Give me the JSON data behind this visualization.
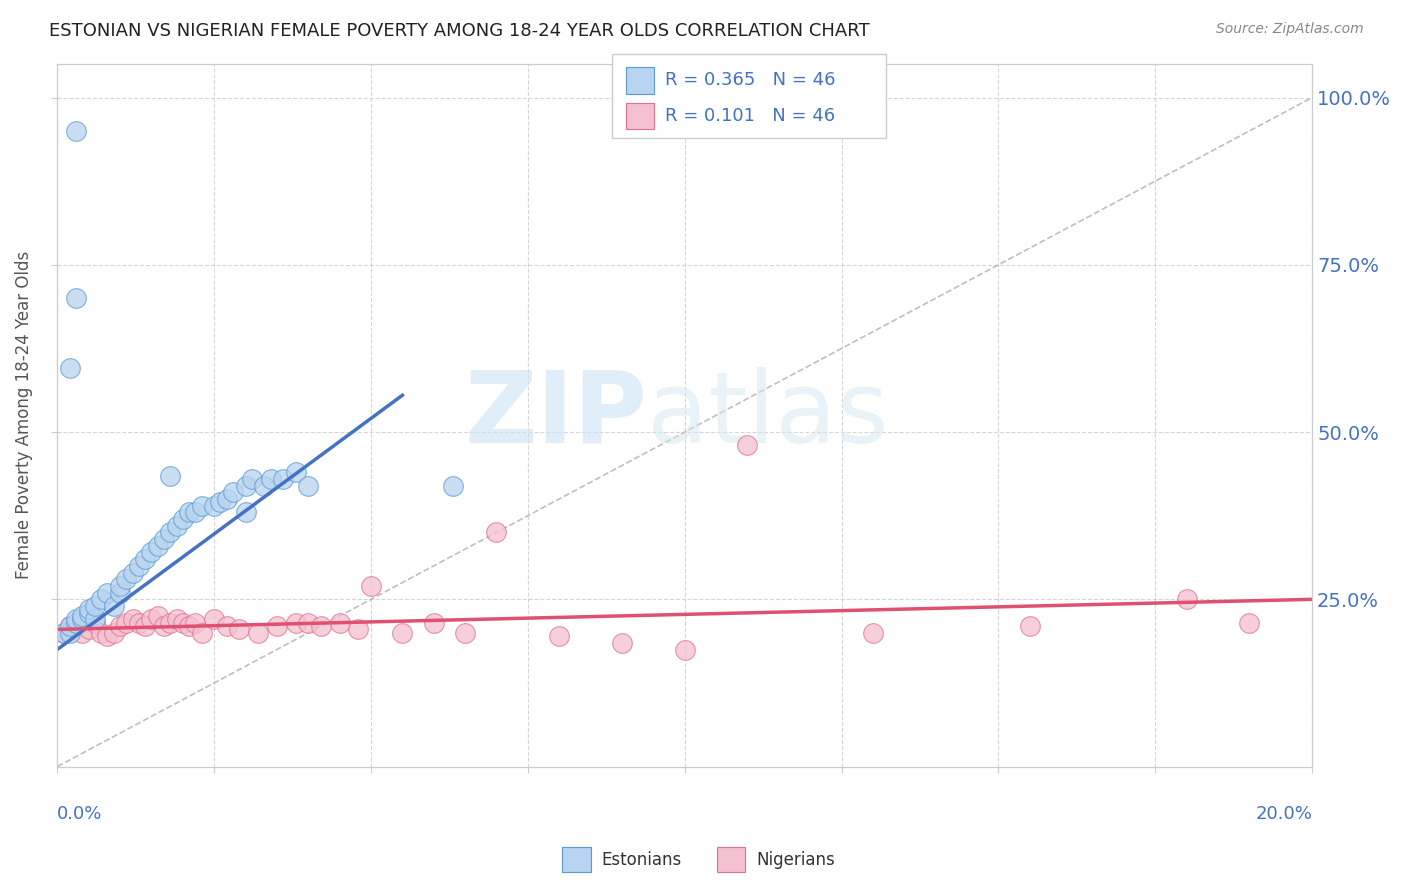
{
  "title": "ESTONIAN VS NIGERIAN FEMALE POVERTY AMONG 18-24 YEAR OLDS CORRELATION CHART",
  "source": "Source: ZipAtlas.com",
  "ylabel": "Female Poverty Among 18-24 Year Olds",
  "ytick_labels": [
    "100.0%",
    "75.0%",
    "50.0%",
    "25.0%"
  ],
  "ytick_values": [
    1.0,
    0.75,
    0.5,
    0.25
  ],
  "xlim": [
    0.0,
    0.2
  ],
  "ylim": [
    0.0,
    1.05
  ],
  "R_estonian": 0.365,
  "N_estonian": 46,
  "R_nigerian": 0.101,
  "N_nigerian": 46,
  "color_estonian_fill": "#b8d4f0",
  "color_estonian_edge": "#5b9bd5",
  "color_nigerian_fill": "#f5c0d0",
  "color_nigerian_edge": "#e07090",
  "color_line_estonian": "#4472c4",
  "color_line_nigerian": "#e05070",
  "color_diag": "#b8b8b8",
  "color_blue_text": "#4472c4",
  "color_source": "#888888",
  "color_title": "#222222",
  "estonian_x": [
    0.001,
    0.002,
    0.002,
    0.003,
    0.003,
    0.004,
    0.004,
    0.005,
    0.005,
    0.006,
    0.006,
    0.007,
    0.008,
    0.009,
    0.01,
    0.01,
    0.011,
    0.012,
    0.013,
    0.014,
    0.015,
    0.016,
    0.017,
    0.018,
    0.019,
    0.02,
    0.021,
    0.022,
    0.023,
    0.025,
    0.026,
    0.027,
    0.028,
    0.03,
    0.031,
    0.033,
    0.034,
    0.036,
    0.038,
    0.04,
    0.002,
    0.003,
    0.018,
    0.03,
    0.003,
    0.063
  ],
  "estonian_y": [
    0.2,
    0.2,
    0.21,
    0.215,
    0.22,
    0.22,
    0.225,
    0.23,
    0.235,
    0.22,
    0.24,
    0.25,
    0.26,
    0.24,
    0.26,
    0.27,
    0.28,
    0.29,
    0.3,
    0.31,
    0.32,
    0.33,
    0.34,
    0.35,
    0.36,
    0.37,
    0.38,
    0.38,
    0.39,
    0.39,
    0.395,
    0.4,
    0.41,
    0.42,
    0.43,
    0.42,
    0.43,
    0.43,
    0.44,
    0.42,
    0.595,
    0.7,
    0.435,
    0.38,
    0.95,
    0.42
  ],
  "nigerian_x": [
    0.001,
    0.002,
    0.003,
    0.004,
    0.005,
    0.006,
    0.007,
    0.008,
    0.009,
    0.01,
    0.011,
    0.012,
    0.013,
    0.014,
    0.015,
    0.016,
    0.017,
    0.018,
    0.019,
    0.02,
    0.021,
    0.022,
    0.023,
    0.025,
    0.027,
    0.029,
    0.032,
    0.035,
    0.038,
    0.04,
    0.042,
    0.045,
    0.048,
    0.05,
    0.055,
    0.06,
    0.065,
    0.07,
    0.08,
    0.09,
    0.1,
    0.11,
    0.13,
    0.155,
    0.18,
    0.19
  ],
  "nigerian_y": [
    0.2,
    0.21,
    0.215,
    0.2,
    0.205,
    0.215,
    0.2,
    0.195,
    0.2,
    0.21,
    0.215,
    0.22,
    0.215,
    0.21,
    0.22,
    0.225,
    0.21,
    0.215,
    0.22,
    0.215,
    0.21,
    0.215,
    0.2,
    0.22,
    0.21,
    0.205,
    0.2,
    0.21,
    0.215,
    0.215,
    0.21,
    0.215,
    0.205,
    0.27,
    0.2,
    0.215,
    0.2,
    0.35,
    0.195,
    0.185,
    0.175,
    0.48,
    0.2,
    0.21,
    0.25,
    0.215
  ],
  "est_line_x": [
    0.0,
    0.055
  ],
  "est_line_y": [
    0.175,
    0.555
  ],
  "nig_line_x": [
    0.0,
    0.2
  ],
  "nig_line_y": [
    0.205,
    0.25
  ]
}
